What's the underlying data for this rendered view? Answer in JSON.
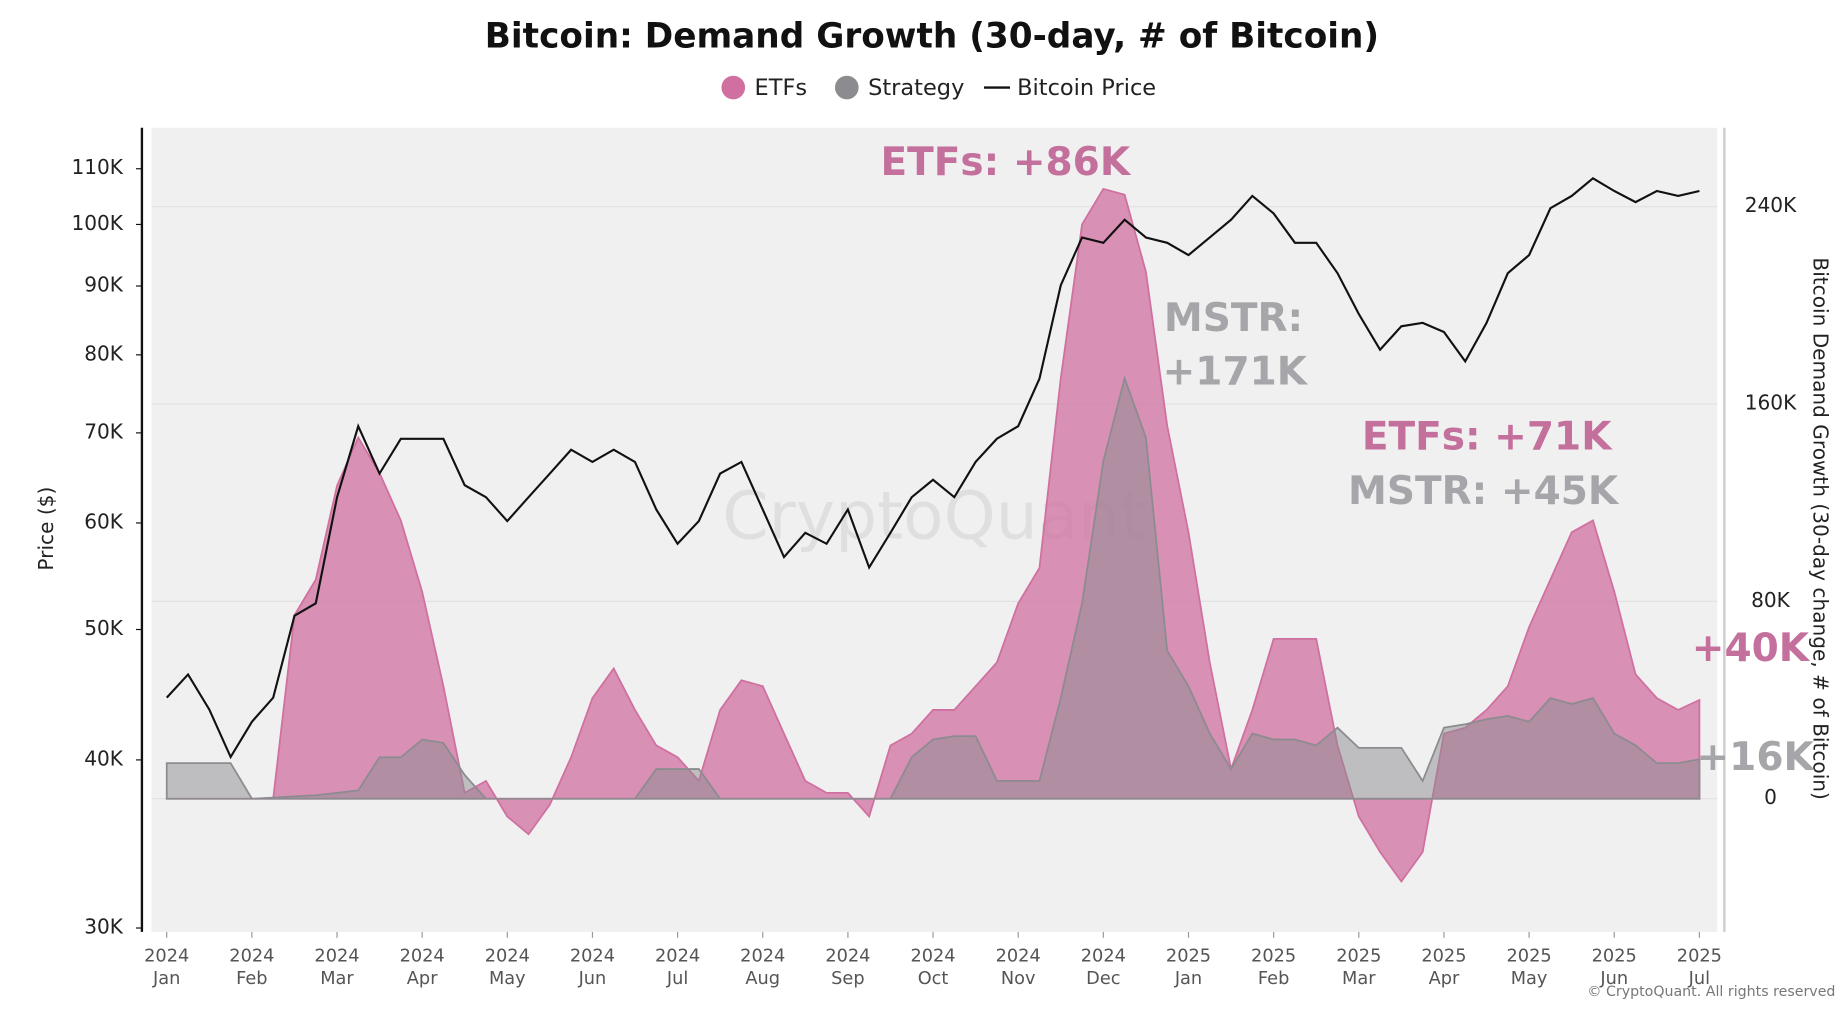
{
  "chart_data": {
    "type": "combo",
    "title": "Bitcoin: Demand Growth (30-day, # of Bitcoin)",
    "ylabel": "Price ($)",
    "y2label": "Bitcoin Demand Growth (30-day change, # of Bitcoin)",
    "watermark": "CryptoQuant",
    "copyright": "© CryptoQuant. All rights reserved",
    "ylog": true,
    "grid": true,
    "legend": "top",
    "xlim": [
      -0.18,
      18.21
    ],
    "ylim": [
      29800,
      118000
    ],
    "y2lim": [
      -54000,
      272000
    ],
    "xticks": [
      {
        "value": 0,
        "label": "2024 Jan"
      },
      {
        "value": 1,
        "label": "2024 Feb"
      },
      {
        "value": 2,
        "label": "2024 Mar"
      },
      {
        "value": 3,
        "label": "2024 Apr"
      },
      {
        "value": 4,
        "label": "2024 May"
      },
      {
        "value": 5,
        "label": "2024 Jun"
      },
      {
        "value": 6,
        "label": "2024 Jul"
      },
      {
        "value": 7,
        "label": "2024 Aug"
      },
      {
        "value": 8,
        "label": "2024 Sep"
      },
      {
        "value": 9,
        "label": "2024 Oct"
      },
      {
        "value": 10,
        "label": "2024 Nov"
      },
      {
        "value": 11,
        "label": "2024 Dec"
      },
      {
        "value": 12,
        "label": "2025 Jan"
      },
      {
        "value": 13,
        "label": "2025 Feb"
      },
      {
        "value": 14,
        "label": "2025 Mar"
      },
      {
        "value": 15,
        "label": "2025 Apr"
      },
      {
        "value": 16,
        "label": "2025 May"
      },
      {
        "value": 17,
        "label": "2025 Jun"
      },
      {
        "value": 18,
        "label": "2025 Jul"
      }
    ],
    "yticks": [
      {
        "value": 30000,
        "label": "30K"
      },
      {
        "value": 40000,
        "label": "40K"
      },
      {
        "value": 50000,
        "label": "50K"
      },
      {
        "value": 60000,
        "label": "60K"
      },
      {
        "value": 70000,
        "label": "70K"
      },
      {
        "value": 80000,
        "label": "80K"
      },
      {
        "value": 90000,
        "label": "90K"
      },
      {
        "value": 100000,
        "label": "100K"
      },
      {
        "value": 110000,
        "label": "110K"
      }
    ],
    "y2ticks": [
      0,
      {
        "value": 80000,
        "label": "80K"
      },
      {
        "value": 160000,
        "label": "160K"
      },
      {
        "value": 240000,
        "label": "240K"
      }
    ],
    "x": [
      0,
      0.25,
      0.5,
      0.75,
      1,
      1.25,
      1.5,
      1.75,
      2,
      2.25,
      2.5,
      2.75,
      3,
      3.25,
      3.5,
      3.75,
      4,
      4.25,
      4.5,
      4.75,
      5,
      5.25,
      5.5,
      5.75,
      6,
      6.25,
      6.5,
      6.75,
      7,
      7.25,
      7.5,
      7.75,
      8,
      8.25,
      8.5,
      8.75,
      9,
      9.25,
      9.5,
      9.75,
      10,
      10.25,
      10.5,
      10.75,
      11,
      11.25,
      11.5,
      11.75,
      12,
      12.25,
      12.5,
      12.75,
      13,
      13.25,
      13.5,
      13.75,
      14,
      14.25,
      14.5,
      14.75,
      15,
      15.25,
      15.5,
      15.75,
      16,
      16.25,
      16.5,
      16.75,
      17,
      17.25,
      17.5,
      17.75,
      18
    ],
    "series": [
      {
        "name": "ETFs",
        "type": "area",
        "axis": "y2",
        "color": "#d070a0",
        "values": [
          0,
          0,
          0,
          0,
          0,
          0,
          74400,
          88800,
          127000,
          146400,
          132000,
          112800,
          84000,
          45600,
          2400,
          7200,
          -7200,
          -14400,
          -2400,
          16800,
          40800,
          52800,
          36000,
          21600,
          16800,
          7200,
          36000,
          48000,
          45600,
          26400,
          7200,
          2400,
          2400,
          -7200,
          21600,
          26400,
          36000,
          36000,
          45600,
          55200,
          79200,
          93600,
          170400,
          232800,
          247200,
          244800,
          213600,
          151200,
          108000,
          55200,
          12000,
          36000,
          64800,
          64800,
          64800,
          21600,
          -7200,
          -21600,
          -33600,
          -21600,
          26400,
          28800,
          36000,
          45600,
          69600,
          88800,
          108000,
          112800,
          84000,
          50400,
          40800,
          36000,
          40000
        ]
      },
      {
        "name": "Strategy",
        "type": "area",
        "axis": "y2",
        "color": "#8c8c90",
        "values": [
          14400,
          14400,
          14400,
          14400,
          0,
          480,
          960,
          1400,
          2400,
          3400,
          16800,
          16800,
          24000,
          22600,
          9600,
          0,
          0,
          0,
          0,
          0,
          0,
          0,
          0,
          12000,
          12000,
          12000,
          0,
          0,
          0,
          0,
          0,
          0,
          0,
          0,
          0,
          16800,
          24000,
          25400,
          25400,
          7200,
          7200,
          7200,
          40800,
          79200,
          136800,
          170400,
          146400,
          60000,
          45600,
          26400,
          12000,
          26400,
          24000,
          24000,
          21600,
          28800,
          20600,
          20600,
          20600,
          7200,
          28800,
          30200,
          32200,
          33600,
          31200,
          40800,
          38400,
          40800,
          26400,
          21600,
          14400,
          14400,
          16000
        ]
      },
      {
        "name": "Bitcoin Price",
        "type": "line",
        "axis": "y",
        "color": "#111111",
        "values": [
          44500,
          46300,
          43600,
          40200,
          42700,
          44500,
          51200,
          52300,
          62700,
          70800,
          65300,
          69300,
          69300,
          69300,
          64000,
          62700,
          60200,
          62700,
          65300,
          68000,
          66600,
          68000,
          66600,
          61400,
          57900,
          60200,
          65300,
          66600,
          61400,
          56600,
          59000,
          57900,
          61400,
          55600,
          59000,
          62700,
          64600,
          62700,
          66600,
          69300,
          70800,
          76800,
          90100,
          97800,
          96900,
          100800,
          97800,
          96900,
          94900,
          97800,
          100800,
          105000,
          101900,
          96900,
          96900,
          92000,
          85800,
          80700,
          84000,
          84500,
          83200,
          79100,
          84500,
          92000,
          94900,
          102800,
          105000,
          108200,
          105900,
          103900,
          105900,
          105000,
          105900
        ]
      }
    ],
    "annotations": [
      {
        "text": "ETFs: +86K",
        "color": "#c4709c"
      },
      {
        "text": "MSTR: +171K",
        "color": "#a6a6aa"
      },
      {
        "text": "ETFs: +71K",
        "color": "#c4709c"
      },
      {
        "text": "MSTR: +45K",
        "color": "#a6a6aa"
      },
      {
        "text": "+40K",
        "color": "#c4709c"
      },
      {
        "text": "+16K",
        "color": "#a6a6aa"
      }
    ]
  }
}
